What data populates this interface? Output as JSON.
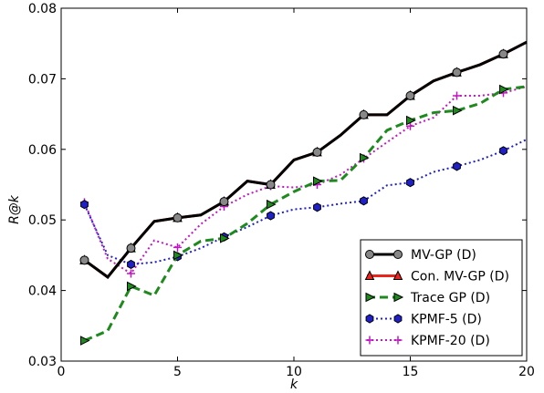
{
  "chart_data": {
    "type": "line",
    "xlabel": "k",
    "ylabel": "R@k",
    "xlim": [
      0,
      20
    ],
    "ylim": [
      0.03,
      0.08
    ],
    "xticks": [
      0,
      5,
      10,
      15,
      20
    ],
    "xtick_labels": [
      "0",
      "5",
      "10",
      "15",
      "20"
    ],
    "yticks": [
      0.03,
      0.04,
      0.05,
      0.06,
      0.07,
      0.08
    ],
    "ytick_labels": [
      "0.03",
      "0.04",
      "0.05",
      "0.06",
      "0.07",
      "0.08"
    ],
    "grid": false,
    "legend_position": "bottom-right",
    "x": [
      1,
      2,
      3,
      4,
      5,
      6,
      7,
      8,
      9,
      10,
      11,
      12,
      13,
      14,
      15,
      16,
      17,
      18,
      19,
      20
    ],
    "series": [
      {
        "name": "MV-GP (D)",
        "color": "#000000",
        "dash": "solid",
        "marker": "circle",
        "marker_color": "#888888",
        "values": [
          0.0443,
          0.0419,
          0.046,
          0.0498,
          0.0503,
          0.0507,
          0.0526,
          0.0555,
          0.055,
          0.0585,
          0.0596,
          0.062,
          0.0649,
          0.0649,
          0.0676,
          0.0697,
          0.0709,
          0.072,
          0.0735,
          0.0752
        ]
      },
      {
        "name": "Con. MV-GP (D)",
        "color": "#e8241c",
        "dash": "solid",
        "marker": "triangle",
        "marker_color": "#e8241c",
        "values": [
          0.0443,
          0.0419,
          0.046,
          0.0498,
          0.0503,
          0.0507,
          0.0526,
          0.0555,
          0.055,
          0.0585,
          0.0596,
          0.062,
          0.0649,
          0.0649,
          0.0676,
          0.0697,
          0.0709,
          0.072,
          0.0735,
          0.0752
        ]
      },
      {
        "name": "Trace GP (D)",
        "color": "#1e8a1e",
        "dash": "dashed",
        "marker": "triangle-right",
        "marker_color": "#1e8a1e",
        "values": [
          0.0329,
          0.0343,
          0.0406,
          0.0393,
          0.045,
          0.047,
          0.0474,
          0.0495,
          0.0522,
          0.054,
          0.0555,
          0.0556,
          0.0588,
          0.0627,
          0.0641,
          0.0652,
          0.0655,
          0.0665,
          0.0685,
          0.0689
        ]
      },
      {
        "name": "KPMF-5 (D)",
        "color": "#2020c8",
        "dash": "dotted",
        "marker": "hexagon",
        "marker_color": "#2020c8",
        "values": [
          0.0522,
          0.045,
          0.0437,
          0.044,
          0.0448,
          0.046,
          0.0476,
          0.049,
          0.0506,
          0.0515,
          0.0518,
          0.0523,
          0.0527,
          0.0549,
          0.0553,
          0.0568,
          0.0576,
          0.0585,
          0.0598,
          0.0614
        ]
      },
      {
        "name": "KPMF-20 (D)",
        "color": "#c018c0",
        "dash": "dotted",
        "marker": "plus",
        "marker_color": "#c018c0",
        "values": [
          0.0525,
          0.0445,
          0.0424,
          0.0471,
          0.0461,
          0.0494,
          0.0519,
          0.0536,
          0.0548,
          0.0546,
          0.055,
          0.0564,
          0.0587,
          0.061,
          0.0633,
          0.0645,
          0.0676,
          0.0676,
          0.068,
          0.0689
        ]
      }
    ]
  }
}
